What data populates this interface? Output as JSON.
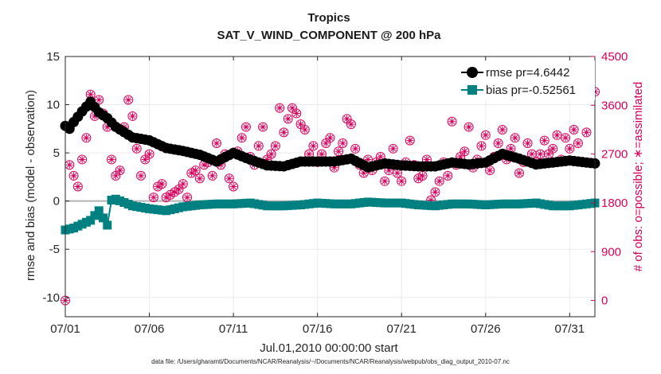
{
  "chart_data": {
    "type": "line",
    "title": "Tropics",
    "subtitle": "SAT_V_WIND_COMPONENT @ 200 hPa",
    "xlabel": "Jul.01,2010 00:00:00 start",
    "ylabel_left": "rmse and bias (model - observation)",
    "ylabel_right": "# of obs: o=possible; ∗=assimilated",
    "footer": "data file: /Users/gharamti/Documents/NCAR/Reanalysis/~/Documents/NCAR/Reanalysis/webpub/obs_diag_output_2010-07.nc",
    "xlim": [
      0,
      31.5
    ],
    "ylim_left": [
      -12,
      15
    ],
    "ylim_right": [
      -300,
      4500
    ],
    "x_tick_labels": [
      "07/01",
      "07/06",
      "07/11",
      "07/16",
      "07/21",
      "07/26",
      "07/31"
    ],
    "x_tick_days": [
      0,
      5,
      10,
      15,
      20,
      25,
      30
    ],
    "y_left_ticks": [
      "-10",
      "-5",
      "0",
      "5",
      "10",
      "15"
    ],
    "y_left_tick_values": [
      -10,
      -5,
      0,
      5,
      10,
      15
    ],
    "y_right_ticks": [
      "0",
      "900",
      "1800",
      "2700",
      "3600",
      "4500"
    ],
    "y_right_tick_values": [
      0,
      900,
      1800,
      2700,
      3600,
      4500
    ],
    "grid": true,
    "legend_position": "top-right",
    "colors": {
      "rmse": "#000000",
      "bias": "#008080",
      "obs": "#d6005c",
      "zero": "#b3b3b3"
    },
    "series": [
      {
        "name": "rmse pr=4.6442",
        "axis": "left",
        "knots": [
          [
            0,
            7.8
          ],
          [
            0.25,
            7.5
          ],
          [
            0.5,
            8.2
          ],
          [
            1.0,
            9.3
          ],
          [
            1.5,
            10.3
          ],
          [
            2.0,
            9.2
          ],
          [
            2.5,
            8.6
          ],
          [
            3.0,
            7.7
          ],
          [
            4.0,
            6.6
          ],
          [
            5.0,
            6.3
          ],
          [
            6.0,
            5.5
          ],
          [
            7.0,
            5.2
          ],
          [
            8.0,
            4.8
          ],
          [
            9.0,
            4.1
          ],
          [
            10.0,
            5.0
          ],
          [
            11.0,
            4.3
          ],
          [
            12.0,
            3.7
          ],
          [
            13.0,
            3.6
          ],
          [
            14.0,
            4.1
          ],
          [
            15.0,
            4.1
          ],
          [
            16.0,
            4.1
          ],
          [
            17.0,
            4.4
          ],
          [
            18.0,
            3.5
          ],
          [
            19.0,
            3.9
          ],
          [
            20.0,
            3.7
          ],
          [
            21.0,
            3.6
          ],
          [
            22.0,
            3.6
          ],
          [
            23.0,
            4.0
          ],
          [
            24.0,
            3.8
          ],
          [
            25.0,
            4.0
          ],
          [
            26.0,
            4.9
          ],
          [
            27.0,
            4.4
          ],
          [
            28.0,
            3.8
          ],
          [
            29.0,
            4.0
          ],
          [
            30.0,
            4.2
          ],
          [
            31.0,
            4.0
          ],
          [
            31.5,
            3.9
          ]
        ]
      },
      {
        "name": "bias pr=-0.52561",
        "axis": "left",
        "knots": [
          [
            0,
            -3.0
          ],
          [
            0.5,
            -2.8
          ],
          [
            1.0,
            -2.4
          ],
          [
            1.5,
            -2.0
          ],
          [
            2.0,
            -1.0
          ],
          [
            2.5,
            -2.5
          ],
          [
            2.75,
            0.1
          ],
          [
            3.0,
            0.2
          ],
          [
            4.0,
            -0.5
          ],
          [
            5.0,
            -0.8
          ],
          [
            6.0,
            -1.0
          ],
          [
            7.0,
            -0.6
          ],
          [
            8.0,
            -0.4
          ],
          [
            9.0,
            -0.3
          ],
          [
            10.0,
            -0.3
          ],
          [
            11.0,
            -0.2
          ],
          [
            12.0,
            -0.5
          ],
          [
            13.0,
            -0.5
          ],
          [
            14.0,
            -0.4
          ],
          [
            15.0,
            -0.2
          ],
          [
            16.0,
            -0.3
          ],
          [
            17.0,
            -0.3
          ],
          [
            18.0,
            -0.1
          ],
          [
            19.0,
            -0.2
          ],
          [
            20.0,
            -0.2
          ],
          [
            21.0,
            -0.4
          ],
          [
            22.0,
            -0.5
          ],
          [
            23.0,
            -0.3
          ],
          [
            24.0,
            -0.3
          ],
          [
            25.0,
            -0.4
          ],
          [
            26.0,
            -0.3
          ],
          [
            27.0,
            -0.3
          ],
          [
            28.0,
            -0.2
          ],
          [
            29.0,
            -0.5
          ],
          [
            30.0,
            -0.5
          ],
          [
            31.0,
            -0.3
          ],
          [
            31.5,
            -0.2
          ]
        ]
      },
      {
        "name": "# of obs (possible / assimilated)",
        "axis": "right",
        "values": [
          [
            0.0,
            0
          ],
          [
            0.25,
            2500
          ],
          [
            0.5,
            2300
          ],
          [
            0.75,
            2100
          ],
          [
            1.0,
            2600
          ],
          [
            1.25,
            3000
          ],
          [
            1.5,
            3800
          ],
          [
            1.75,
            3400
          ],
          [
            2.0,
            3700
          ],
          [
            2.25,
            3450
          ],
          [
            2.5,
            3200
          ],
          [
            2.75,
            2600
          ],
          [
            3.0,
            2300
          ],
          [
            3.25,
            2400
          ],
          [
            3.5,
            3200
          ],
          [
            3.75,
            3700
          ],
          [
            4.0,
            3400
          ],
          [
            4.25,
            2800
          ],
          [
            4.5,
            2300
          ],
          [
            4.75,
            2600
          ],
          [
            5.0,
            2700
          ],
          [
            5.25,
            1900
          ],
          [
            5.5,
            2100
          ],
          [
            5.75,
            2150
          ],
          [
            6.0,
            1900
          ],
          [
            6.25,
            1950
          ],
          [
            6.5,
            2000
          ],
          [
            6.75,
            2050
          ],
          [
            7.0,
            2150
          ],
          [
            7.25,
            1900
          ],
          [
            7.5,
            2350
          ],
          [
            7.75,
            2400
          ],
          [
            8.0,
            2250
          ],
          [
            8.25,
            2500
          ],
          [
            8.5,
            2550
          ],
          [
            8.75,
            2300
          ],
          [
            9.0,
            2900
          ],
          [
            9.25,
            2500
          ],
          [
            9.5,
            2700
          ],
          [
            9.75,
            2250
          ],
          [
            10.0,
            2100
          ],
          [
            10.25,
            2750
          ],
          [
            10.5,
            3000
          ],
          [
            10.75,
            3200
          ],
          [
            11.0,
            2650
          ],
          [
            11.25,
            2500
          ],
          [
            11.5,
            2850
          ],
          [
            11.75,
            3200
          ],
          [
            12.0,
            2600
          ],
          [
            12.25,
            2700
          ],
          [
            12.5,
            2850
          ],
          [
            12.75,
            3550
          ],
          [
            13.0,
            3100
          ],
          [
            13.25,
            3350
          ],
          [
            13.5,
            3550
          ],
          [
            13.75,
            3450
          ],
          [
            14.0,
            3250
          ],
          [
            14.25,
            3150
          ],
          [
            14.5,
            2700
          ],
          [
            14.75,
            2850
          ],
          [
            15.0,
            2550
          ],
          [
            15.25,
            2700
          ],
          [
            15.5,
            2900
          ],
          [
            15.75,
            3000
          ],
          [
            16.0,
            2450
          ],
          [
            16.25,
            2750
          ],
          [
            16.5,
            2900
          ],
          [
            16.75,
            3350
          ],
          [
            17.0,
            3250
          ],
          [
            17.25,
            2800
          ],
          [
            17.5,
            2500
          ],
          [
            17.75,
            2350
          ],
          [
            18.0,
            2600
          ],
          [
            18.25,
            2400
          ],
          [
            18.5,
            2550
          ],
          [
            18.75,
            2650
          ],
          [
            19.0,
            2200
          ],
          [
            19.25,
            2400
          ],
          [
            19.5,
            2800
          ],
          [
            19.75,
            2350
          ],
          [
            20.0,
            2200
          ],
          [
            20.25,
            2550
          ],
          [
            20.5,
            2950
          ],
          [
            20.75,
            2500
          ],
          [
            21.0,
            2250
          ],
          [
            21.25,
            2300
          ],
          [
            21.5,
            2600
          ],
          [
            21.75,
            1850
          ],
          [
            22.0,
            2000
          ],
          [
            22.25,
            2200
          ],
          [
            22.5,
            2550
          ],
          [
            22.75,
            2300
          ],
          [
            23.0,
            3300
          ],
          [
            23.25,
            2500
          ],
          [
            23.5,
            2650
          ],
          [
            23.75,
            2750
          ],
          [
            24.0,
            3200
          ],
          [
            24.25,
            2450
          ],
          [
            24.5,
            2600
          ],
          [
            24.75,
            2850
          ],
          [
            25.0,
            3050
          ],
          [
            25.25,
            2400
          ],
          [
            25.5,
            2650
          ],
          [
            25.75,
            2900
          ],
          [
            26.0,
            3150
          ],
          [
            26.25,
            2600
          ],
          [
            26.5,
            2800
          ],
          [
            26.75,
            3000
          ],
          [
            27.0,
            2350
          ],
          [
            27.25,
            2550
          ],
          [
            27.5,
            2900
          ],
          [
            27.75,
            2700
          ],
          [
            28.0,
            2550
          ],
          [
            28.25,
            2700
          ],
          [
            28.5,
            2950
          ],
          [
            28.75,
            2700
          ],
          [
            29.0,
            2800
          ],
          [
            29.25,
            3050
          ],
          [
            29.5,
            2600
          ],
          [
            29.75,
            3000
          ],
          [
            30.0,
            2800
          ],
          [
            30.25,
            3150
          ],
          [
            30.5,
            2900
          ],
          [
            30.75,
            4000
          ],
          [
            31.0,
            3100
          ],
          [
            31.5,
            3850
          ]
        ]
      }
    ]
  }
}
